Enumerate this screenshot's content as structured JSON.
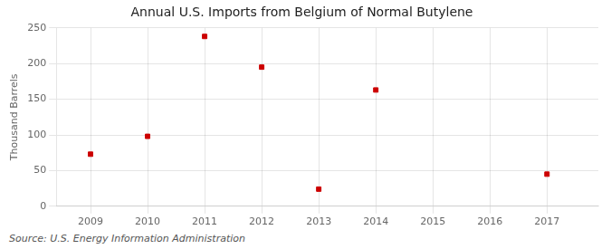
{
  "chart_data": {
    "type": "scatter",
    "title": "Annual U.S. Imports from Belgium of Normal Butylene",
    "ylabel": "Thousand Barrels",
    "source": "Source: U.S. Energy Information Administration",
    "x": [
      2009,
      2010,
      2011,
      2012,
      2013,
      2014,
      2017
    ],
    "values": [
      73,
      98,
      238,
      195,
      24,
      163,
      45
    ],
    "color": "#cc0000",
    "marker": "square",
    "xlim": [
      2008.4,
      2017.9
    ],
    "xticks": [
      2009,
      2010,
      2011,
      2012,
      2013,
      2014,
      2015,
      2016,
      2017
    ],
    "ylim": [
      0,
      250
    ],
    "yticks": [
      0,
      50,
      100,
      150,
      200,
      250
    ],
    "grid": true
  }
}
